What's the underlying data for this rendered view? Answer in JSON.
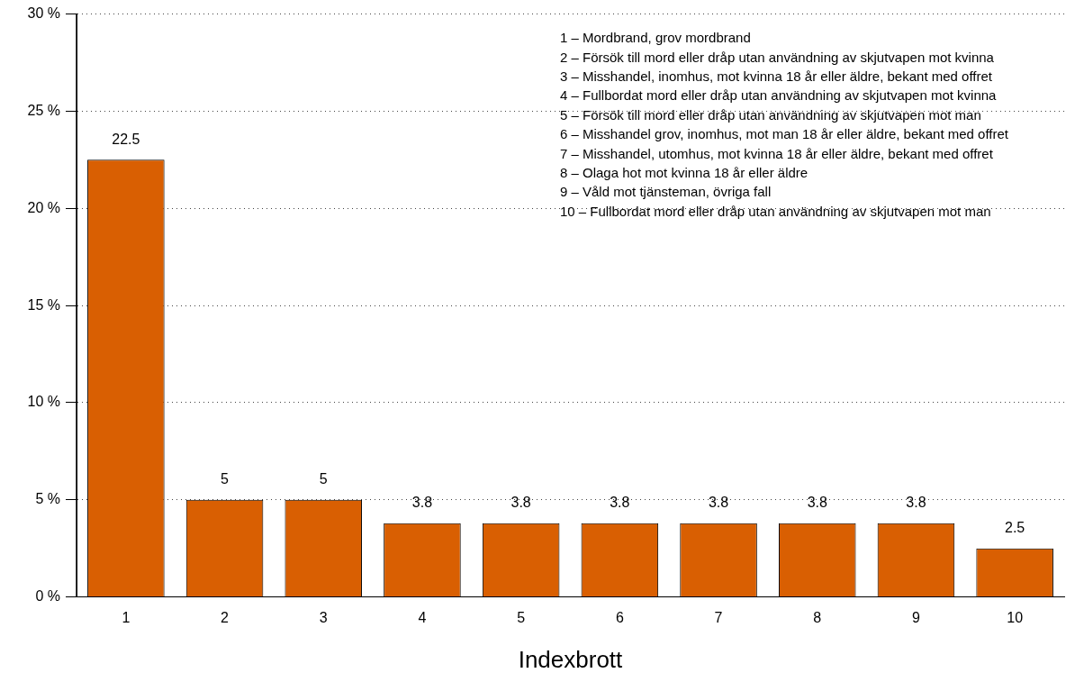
{
  "chart_data": {
    "type": "bar",
    "xlabel": "Indexbrott",
    "categories": [
      "1",
      "2",
      "3",
      "4",
      "5",
      "6",
      "7",
      "8",
      "9",
      "10"
    ],
    "values": [
      22.5,
      5,
      5,
      3.8,
      3.8,
      3.8,
      3.8,
      3.8,
      3.8,
      2.5
    ],
    "color": "#d95f02",
    "data_labels": true,
    "grid": "y",
    "legend": false,
    "ylim": [
      0,
      30
    ],
    "yticks": [
      {
        "value": 0,
        "label": "0 %"
      },
      {
        "value": 5,
        "label": "5 %"
      },
      {
        "value": 10,
        "label": "10 %"
      },
      {
        "value": 15,
        "label": "15 %"
      },
      {
        "value": 20,
        "label": "20 %"
      },
      {
        "value": 25,
        "label": "25 %"
      },
      {
        "value": 30,
        "label": "30 %"
      }
    ],
    "annotations": [
      "1 – Mordbrand, grov mordbrand",
      "2 – Försök till mord eller dråp utan användning av skjutvapen mot kvinna",
      "3 – Misshandel, inomhus, mot kvinna 18 år eller äldre, bekant med offret",
      "4 – Fullbordat mord eller dråp utan användning av skjutvapen mot kvinna",
      "5 – Försök till mord eller dråp utan användning av skjutvapen mot man",
      "6 – Misshandel grov, inomhus, mot man 18 år eller äldre, bekant med offret",
      "7 – Misshandel, utomhus, mot kvinna 18 år eller äldre, bekant med offret",
      "8 – Olaga hot mot kvinna 18 år eller äldre",
      "9 – Våld mot tjänsteman, övriga fall",
      "10 – Fullbordat mord eller dråp utan användning av skjutvapen mot man"
    ]
  }
}
